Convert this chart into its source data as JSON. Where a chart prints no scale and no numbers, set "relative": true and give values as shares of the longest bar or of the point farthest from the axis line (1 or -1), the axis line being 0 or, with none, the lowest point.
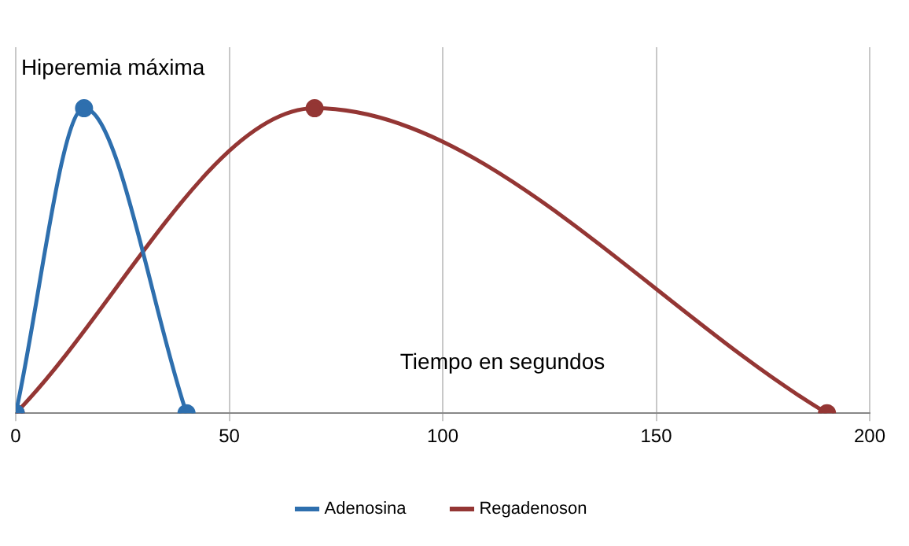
{
  "chart_data": {
    "type": "line",
    "relative": true,
    "xlabel": "Tiempo en segundos",
    "annotations": [
      {
        "text": "Hiperemia máxima",
        "x": 16,
        "y": 1
      }
    ],
    "series": [
      {
        "name": "Adenosina",
        "color": "#2e6fae",
        "x": [
          0,
          16,
          40
        ],
        "values": [
          0,
          1,
          0
        ]
      },
      {
        "name": "Regadenoson",
        "color": "#943634",
        "x": [
          0,
          70,
          190
        ],
        "values": [
          0,
          1,
          0
        ]
      }
    ],
    "xlim": [
      0,
      200
    ],
    "xticks": [
      0,
      50,
      100,
      150,
      200
    ],
    "grid": "x",
    "legend": "bottom",
    "marker": "circle",
    "line_style": "solid"
  }
}
